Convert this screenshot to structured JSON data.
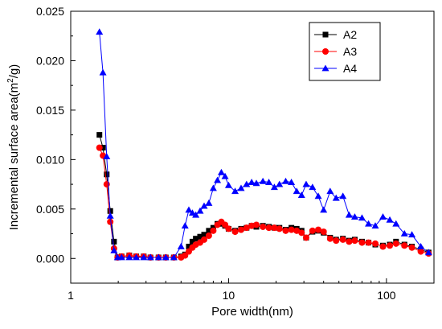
{
  "chart_data": {
    "type": "line",
    "xlabel": "Pore width(nm)",
    "ylabel_base": "Incremental surface area(m",
    "ylabel_sup": "2",
    "ylabel_tail": "/g)",
    "xscale": "log",
    "xlim": [
      1,
      200
    ],
    "ylim": [
      -0.0025,
      0.025
    ],
    "xticks": [
      1,
      10,
      100
    ],
    "xtick_labels": [
      "1",
      "10",
      "100"
    ],
    "yticks": [
      0.0,
      0.005,
      0.01,
      0.015,
      0.02,
      0.025
    ],
    "ytick_labels": [
      "0.000",
      "0.005",
      "0.010",
      "0.015",
      "0.020",
      "0.025"
    ],
    "grid": false,
    "legend_position": "top-right",
    "series": [
      {
        "name": "A2",
        "color": "#000000",
        "marker": "square",
        "x": [
          1.52,
          1.6,
          1.69,
          1.78,
          1.88,
          1.98,
          2.1,
          2.35,
          2.6,
          2.9,
          3.2,
          3.6,
          4.0,
          4.5,
          5.0,
          5.3,
          5.6,
          5.9,
          6.2,
          6.6,
          7.0,
          7.5,
          8.0,
          8.5,
          9.0,
          9.5,
          10.0,
          11.0,
          12.0,
          13.0,
          14.0,
          15.0,
          16.5,
          18.0,
          19.5,
          21.0,
          23.0,
          25.0,
          27.0,
          29.0,
          31.0,
          34.0,
          37.0,
          40.0,
          44.0,
          48.0,
          53.0,
          58.0,
          63.0,
          70.0,
          77.0,
          85.0,
          95.0,
          105.0,
          115.0,
          130.0,
          145.0,
          165.0,
          185.0
        ],
        "values": [
          0.0125,
          0.0112,
          0.0085,
          0.0048,
          0.0017,
          0.0001,
          0.0002,
          0.0003,
          0.0002,
          0.0002,
          0.0001,
          0.0001,
          0.0001,
          0.0001,
          0.0002,
          0.0004,
          0.0012,
          0.0017,
          0.002,
          0.0022,
          0.0024,
          0.0028,
          0.0031,
          0.0035,
          0.0035,
          0.0033,
          0.003,
          0.0028,
          0.003,
          0.0031,
          0.0033,
          0.0032,
          0.0033,
          0.0032,
          0.0031,
          0.0031,
          0.0029,
          0.0031,
          0.003,
          0.0028,
          0.0021,
          0.0027,
          0.0028,
          0.0026,
          0.0021,
          0.0019,
          0.002,
          0.0018,
          0.0019,
          0.0017,
          0.0016,
          0.0014,
          0.0013,
          0.0014,
          0.0017,
          0.0014,
          0.0012,
          0.0009,
          0.0006
        ]
      },
      {
        "name": "A3",
        "color": "#ff0000",
        "marker": "circle",
        "x": [
          1.52,
          1.6,
          1.69,
          1.78,
          1.88,
          1.98,
          2.1,
          2.35,
          2.6,
          2.9,
          3.2,
          3.6,
          4.0,
          4.5,
          5.0,
          5.3,
          5.6,
          5.9,
          6.2,
          6.6,
          7.0,
          7.5,
          8.0,
          8.5,
          9.0,
          9.5,
          10.0,
          11.0,
          12.0,
          13.0,
          14.0,
          15.0,
          16.5,
          18.0,
          19.5,
          21.0,
          23.0,
          25.0,
          27.0,
          29.0,
          31.0,
          34.0,
          37.0,
          40.0,
          44.0,
          48.0,
          53.0,
          58.0,
          63.0,
          70.0,
          77.0,
          85.0,
          95.0,
          105.0,
          115.0,
          130.0,
          145.0,
          165.0,
          185.0
        ],
        "values": [
          0.0112,
          0.0104,
          0.0075,
          0.0037,
          0.001,
          0.0001,
          0.0002,
          0.0003,
          0.0002,
          0.0002,
          0.0001,
          0.0001,
          0.0001,
          0.0001,
          0.0001,
          0.0003,
          0.0007,
          0.0011,
          0.0014,
          0.0016,
          0.0019,
          0.0023,
          0.0028,
          0.0034,
          0.0037,
          0.0034,
          0.003,
          0.0027,
          0.0029,
          0.0031,
          0.0033,
          0.0034,
          0.0032,
          0.0031,
          0.0031,
          0.003,
          0.0028,
          0.0029,
          0.0028,
          0.0026,
          0.0021,
          0.0028,
          0.0029,
          0.0027,
          0.002,
          0.0018,
          0.0019,
          0.0017,
          0.0018,
          0.0016,
          0.0016,
          0.0015,
          0.0012,
          0.0013,
          0.0015,
          0.0013,
          0.0011,
          0.0007,
          0.0005
        ]
      },
      {
        "name": "A4",
        "color": "#0000ff",
        "marker": "triangle",
        "x": [
          1.52,
          1.6,
          1.69,
          1.78,
          1.88,
          1.98,
          2.1,
          2.35,
          2.6,
          2.9,
          3.2,
          3.6,
          4.0,
          4.5,
          5.0,
          5.3,
          5.6,
          5.9,
          6.2,
          6.6,
          7.0,
          7.5,
          8.0,
          8.5,
          9.0,
          9.5,
          10.0,
          11.0,
          12.0,
          13.0,
          14.0,
          15.0,
          16.5,
          18.0,
          19.5,
          21.0,
          23.0,
          25.0,
          27.0,
          29.0,
          31.0,
          34.0,
          37.0,
          40.0,
          44.0,
          48.0,
          53.0,
          58.0,
          63.0,
          70.0,
          77.0,
          85.0,
          95.0,
          105.0,
          115.0,
          130.0,
          145.0,
          165.0,
          185.0
        ],
        "values": [
          0.0229,
          0.0188,
          0.0103,
          0.0043,
          0.0008,
          0.0001,
          0.0001,
          0.0001,
          0.0001,
          0.0001,
          0.0001,
          0.0001,
          0.0001,
          0.0001,
          0.0012,
          0.0033,
          0.0049,
          0.0046,
          0.0044,
          0.0048,
          0.0053,
          0.0056,
          0.0071,
          0.0079,
          0.0087,
          0.0083,
          0.0074,
          0.0068,
          0.0071,
          0.0075,
          0.0077,
          0.0076,
          0.0078,
          0.0077,
          0.0072,
          0.0075,
          0.0078,
          0.0077,
          0.0068,
          0.0064,
          0.0075,
          0.0072,
          0.0063,
          0.0049,
          0.0068,
          0.0061,
          0.0063,
          0.0044,
          0.0042,
          0.0041,
          0.0035,
          0.0033,
          0.0042,
          0.0039,
          0.0035,
          0.0025,
          0.0024,
          0.0012,
          0.0006
        ]
      }
    ]
  }
}
